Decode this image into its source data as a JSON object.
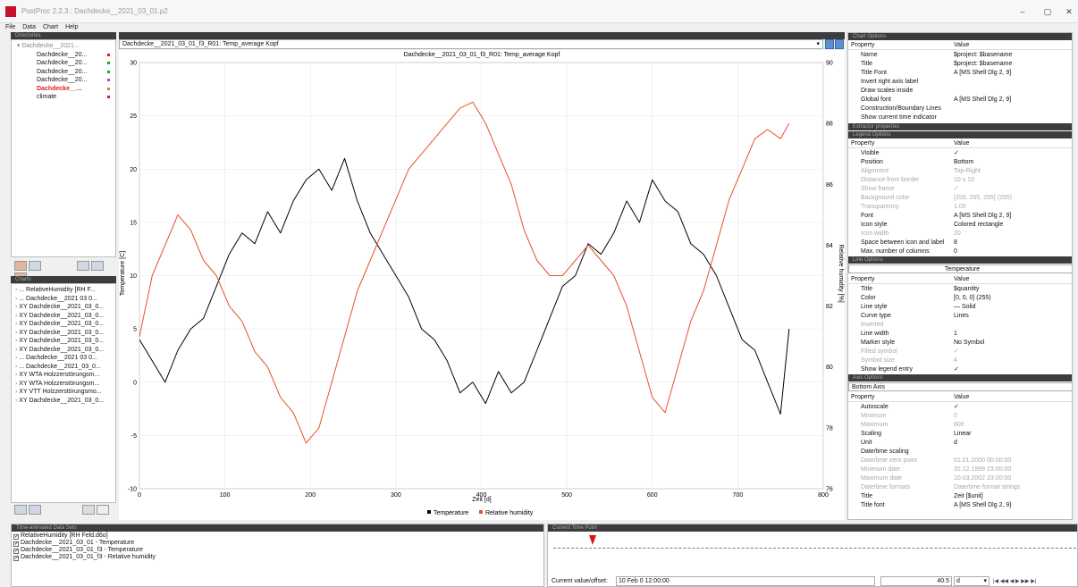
{
  "window": {
    "title": "PostProc 2.2.3 : Dachdecke__2021_03_01.p2",
    "min": "–",
    "max": "▢",
    "close": "✕"
  },
  "menu": [
    "File",
    "Data",
    "Chart",
    "Help"
  ],
  "directories": {
    "title": "Directories",
    "root": "Dachdecke__2021...",
    "items": [
      {
        "label": "Dachdecke__20...",
        "color": "#d22"
      },
      {
        "label": "Dachdecke__20...",
        "color": "#2a2"
      },
      {
        "label": "Dachdecke__20...",
        "color": "#2a2"
      },
      {
        "label": "Dachdecke__20...",
        "color": "#b4b"
      },
      {
        "label": "Dachdecke__...",
        "color": "#c84"
      },
      {
        "label": "climate",
        "color": "#c24"
      }
    ]
  },
  "charts_panel": {
    "title": "Charts",
    "items": [
      "... RelativeHumidity [RH F...",
      "... Dachdecke__2021 03 0...",
      "XY Dachdecke__2021_03_0...",
      "XY Dachdecke__2021_03_0...",
      "XY Dachdecke__2021_03_0...",
      "XY Dachdecke__2021_03_0...",
      "XY Dachdecke__2021_03_0...",
      "XY Dachdecke__2021_03_0...",
      "... Dachdecke__2021 03 0...",
      "... Dachdecke__2021_03_0...",
      "XY WTA Holzzerstörungsm...",
      "XY WTA Holzzerstörungsm...",
      "XY VTT Holzzerstörungsmo...",
      "XY Dachdecke__2021_03_0..."
    ]
  },
  "chart_select": "Dachdecke__2021_03_01_f3_R01: Temp_average Kopf",
  "chart_data": {
    "type": "line",
    "title": "Dachdecke__2021_03_01_f3_R01: Temp_average Kopf",
    "xlabel": "Zeit [d]",
    "ylabel": "Temperature [C]",
    "y2label": "Relative humidity [%]",
    "xlim": [
      0,
      800
    ],
    "ylim": [
      -10,
      30
    ],
    "y2lim": [
      76,
      90
    ],
    "xticks": [
      "0",
      "100",
      "200",
      "300",
      "400",
      "500",
      "600",
      "700",
      "800"
    ],
    "yticks": [
      "-10",
      "-5",
      "0",
      "5",
      "10",
      "15",
      "20",
      "25",
      "30"
    ],
    "y2ticks": [
      "76",
      "78",
      "80",
      "82",
      "84",
      "86",
      "88",
      "90"
    ],
    "legend_position": "bottom",
    "series": [
      {
        "name": "Temperature",
        "color": "#000000",
        "axis": "left",
        "x": [
          0,
          15,
          30,
          45,
          60,
          75,
          90,
          105,
          120,
          135,
          150,
          165,
          180,
          195,
          210,
          225,
          240,
          255,
          270,
          285,
          300,
          315,
          330,
          345,
          360,
          375,
          390,
          405,
          420,
          435,
          450,
          465,
          480,
          495,
          510,
          525,
          540,
          555,
          570,
          585,
          600,
          615,
          630,
          645,
          660,
          675,
          690,
          705,
          720,
          735,
          750,
          760
        ],
        "y": [
          4,
          2,
          0,
          3,
          5,
          6,
          9,
          12,
          14,
          13,
          16,
          14,
          17,
          19,
          20,
          18,
          21,
          17,
          14,
          12,
          10,
          8,
          5,
          4,
          2,
          -1,
          0,
          -2,
          1,
          -1,
          0,
          3,
          6,
          9,
          10,
          13,
          12,
          14,
          17,
          15,
          19,
          17,
          16,
          13,
          12,
          10,
          7,
          4,
          3,
          0,
          -3,
          5
        ]
      },
      {
        "name": "Relative humidity",
        "color": "#e8502a",
        "axis": "right",
        "x": [
          0,
          15,
          30,
          45,
          60,
          75,
          90,
          105,
          120,
          135,
          150,
          165,
          180,
          195,
          210,
          225,
          240,
          255,
          270,
          285,
          300,
          315,
          330,
          345,
          360,
          375,
          390,
          405,
          420,
          435,
          450,
          465,
          480,
          495,
          510,
          525,
          540,
          555,
          570,
          585,
          600,
          615,
          630,
          645,
          660,
          675,
          690,
          705,
          720,
          735,
          750,
          760
        ],
        "y": [
          81,
          83,
          84,
          85,
          84.5,
          83.5,
          83,
          82,
          81.5,
          80.5,
          80,
          79,
          78.5,
          77.5,
          78,
          79.5,
          81,
          82.5,
          83.5,
          84.5,
          85.5,
          86.5,
          87,
          87.5,
          88,
          88.5,
          88.7,
          88,
          87,
          86,
          84.5,
          83.5,
          83,
          83,
          83.5,
          84,
          83.5,
          83,
          82,
          80.5,
          79,
          78.5,
          80,
          81.5,
          82.5,
          84,
          85.5,
          86.5,
          87.5,
          87.8,
          87.5,
          88
        ]
      }
    ]
  },
  "chart_options": {
    "title": "Chart Options",
    "header": {
      "property": "Property",
      "value": "Value"
    },
    "rows": [
      {
        "p": "Name",
        "v": "$project: $basename"
      },
      {
        "p": "Title",
        "v": "$project: $basename"
      },
      {
        "p": "Title Font",
        "v": "A [MS Shell Dlg 2, 9]"
      },
      {
        "p": "Invert right axis label",
        "v": ""
      },
      {
        "p": "Draw scales inside",
        "v": ""
      },
      {
        "p": "Global font",
        "v": "A [MS Shell Dlg 2, 9]"
      },
      {
        "p": "Construction/Boundary Lines",
        "v": ""
      },
      {
        "p": "Show current time indicator",
        "v": ""
      }
    ],
    "extractor": "Extractor properties",
    "legend_title": "Legend Options",
    "legend_rows": [
      {
        "p": "Visible",
        "v": "✓",
        "dis": false
      },
      {
        "p": "Position",
        "v": "Bottom",
        "dis": false
      },
      {
        "p": "Alignment",
        "v": "Top-Right",
        "dis": true
      },
      {
        "p": "Distance from border",
        "v": "10 x 10",
        "dis": true
      },
      {
        "p": "Show frame",
        "v": "✓",
        "dis": true
      },
      {
        "p": "Background color",
        "v": "[255, 255, 255] (255)",
        "dis": true
      },
      {
        "p": "Transparency",
        "v": "1.00",
        "dis": true
      },
      {
        "p": "Font",
        "v": "A [MS Shell Dlg 2, 9]",
        "dis": false
      },
      {
        "p": "Icon style",
        "v": "Colored rectangle",
        "dis": false
      },
      {
        "p": "Icon width",
        "v": "20",
        "dis": true
      },
      {
        "p": "Space between icon and label",
        "v": "8",
        "dis": false
      },
      {
        "p": "Max. number of columns",
        "v": "0",
        "dis": false
      }
    ],
    "line_title": "Line Options",
    "line_select": "Temperature",
    "line_rows": [
      {
        "p": "Title",
        "v": "$quantity",
        "dis": false
      },
      {
        "p": "Color",
        "v": "[0, 0, 0] (255)",
        "dis": false
      },
      {
        "p": "Line style",
        "v": "— Solid",
        "dis": false
      },
      {
        "p": "Curve type",
        "v": "Lines",
        "dis": false
      },
      {
        "p": "Inverted",
        "v": "",
        "dis": true
      },
      {
        "p": "Line width",
        "v": "1",
        "dis": false
      },
      {
        "p": "Marker style",
        "v": "No Symbol",
        "dis": false
      },
      {
        "p": "Filled symbol",
        "v": "✓",
        "dis": true
      },
      {
        "p": "Symbol size",
        "v": "4",
        "dis": true
      },
      {
        "p": "Show legend entry",
        "v": "✓",
        "dis": false
      }
    ],
    "axis_title": "Axis Options",
    "axis_select": "Bottom Axis",
    "axis_rows": [
      {
        "p": "Autoscale",
        "v": "✓",
        "dis": false
      },
      {
        "p": "Minimum",
        "v": "0",
        "dis": true
      },
      {
        "p": "Maximum",
        "v": "800",
        "dis": true
      },
      {
        "p": "Scaling",
        "v": "Linear",
        "dis": false
      },
      {
        "p": "Unit",
        "v": "d",
        "dis": false
      },
      {
        "p": "Date/time scaling",
        "v": "",
        "dis": false
      },
      {
        "p": "Date/time zero point",
        "v": "01.01.2000 00:00:00",
        "dis": true
      },
      {
        "p": "Minimum date",
        "v": "31.12.1999 23:00:00",
        "dis": true
      },
      {
        "p": "Maximum date",
        "v": "10.03.2002 23:00:00",
        "dis": true
      },
      {
        "p": "Date/time formats",
        "v": "Date/time format strings",
        "dis": true
      },
      {
        "p": "Title",
        "v": "Zeit [$unit]",
        "dis": false
      },
      {
        "p": "Title font",
        "v": "A [MS Shell Dlg 2, 9]",
        "dis": false
      }
    ]
  },
  "time_animated": {
    "title": "Time-animated Data Sets",
    "items": [
      "RelativeHumidity [RH Feld.d6o]",
      "Dachdecke__2021_03_01 - Temperature",
      "Dachdecke__2021_03_01_f3 - Temperature",
      "Dachdecke__2021_03_01_f3 - Relative humidity"
    ]
  },
  "current_time": {
    "title": "Current Time Point",
    "label": "Current value/offset:",
    "value": "10 Feb 0 12:00:00",
    "offset": "40.5",
    "unit": "d",
    "controls": "|◀ ◀◀ ◀ ▶ ▶▶ ▶|"
  }
}
